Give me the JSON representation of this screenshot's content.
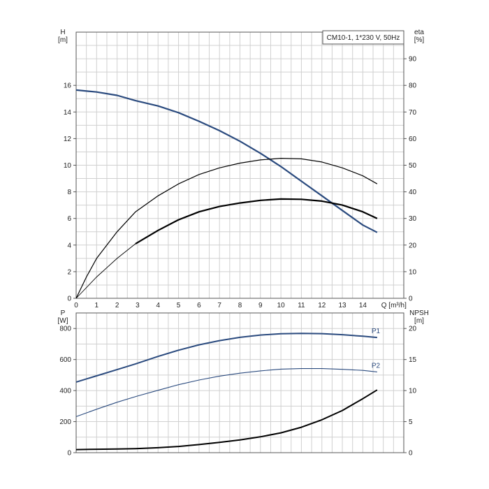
{
  "chart_data": [
    {
      "type": "line",
      "legend": "CM10-1, 1*230 V, 50Hz",
      "xlabel": "Q [m³/h]",
      "x_ticks": [
        "0",
        "1",
        "2",
        "3",
        "4",
        "5",
        "6",
        "7",
        "8",
        "9",
        "10",
        "11",
        "12",
        "13",
        "14"
      ],
      "xlim": [
        0,
        16
      ],
      "ylabel_left": [
        "H",
        "[m]"
      ],
      "ylim_left": [
        0,
        20
      ],
      "y_ticks_left": [
        "0",
        "2",
        "4",
        "6",
        "8",
        "10",
        "12",
        "14",
        "16"
      ],
      "ylabel_right": [
        "eta",
        "[%]"
      ],
      "ylim_right": [
        0,
        100
      ],
      "y_ticks_right": [
        "0",
        "10",
        "20",
        "30",
        "40",
        "50",
        "60",
        "70",
        "80",
        "90"
      ],
      "grid": true,
      "series": [
        {
          "axis": "left",
          "color": "#2a4a7e",
          "points": [
            [
              0,
              15.65
            ],
            [
              1,
              15.5
            ],
            [
              2,
              15.25
            ],
            [
              2.9,
              14.85
            ],
            [
              4,
              14.45
            ],
            [
              5,
              13.95
            ],
            [
              6,
              13.3
            ],
            [
              7,
              12.6
            ],
            [
              8,
              11.8
            ],
            [
              9,
              10.9
            ],
            [
              10,
              9.9
            ],
            [
              11,
              8.8
            ],
            [
              12,
              7.7
            ],
            [
              13,
              6.6
            ],
            [
              14,
              5.5
            ],
            [
              14.7,
              4.95
            ]
          ]
        },
        {
          "axis": "right",
          "color": "#000000",
          "points": [
            [
              0,
              0
            ],
            [
              0.5,
              8
            ],
            [
              1,
              15
            ],
            [
              2,
              25
            ],
            [
              2.9,
              32.5
            ],
            [
              4,
              38.5
            ],
            [
              5,
              43
            ],
            [
              6,
              46.5
            ],
            [
              7,
              49
            ],
            [
              8,
              50.8
            ],
            [
              9,
              52
            ],
            [
              10,
              52.6
            ],
            [
              11,
              52.4
            ],
            [
              12,
              51.2
            ],
            [
              13,
              49
            ],
            [
              14,
              46
            ],
            [
              14.7,
              43
            ]
          ]
        },
        {
          "axis": "right",
          "color": "#000000",
          "dashed_until_x": 2.9,
          "points": [
            [
              0,
              0
            ],
            [
              1,
              8
            ],
            [
              2,
              15
            ],
            [
              2.9,
              20.5
            ],
            [
              4,
              25.5
            ],
            [
              5,
              29.5
            ],
            [
              6,
              32.5
            ],
            [
              7,
              34.5
            ],
            [
              8,
              35.8
            ],
            [
              9,
              36.8
            ],
            [
              10,
              37.3
            ],
            [
              11,
              37.2
            ],
            [
              12,
              36.5
            ],
            [
              13,
              35
            ],
            [
              14,
              32.5
            ],
            [
              14.7,
              30
            ]
          ]
        }
      ]
    },
    {
      "type": "line",
      "ylabel_left": [
        "P",
        "[W]"
      ],
      "ylim_left": [
        0,
        900
      ],
      "y_ticks_left": [
        "0",
        "200",
        "400",
        "600",
        "800"
      ],
      "ylabel_right": [
        "NPSH",
        "[m]"
      ],
      "ylim_right": [
        0,
        22.5
      ],
      "y_ticks_right": [
        "0",
        "5",
        "10",
        "15",
        "20"
      ],
      "xlim": [
        0,
        16
      ],
      "grid": true,
      "series": [
        {
          "name": "P1",
          "axis": "left",
          "color": "#2a4a7e",
          "points": [
            [
              0,
              455
            ],
            [
              1,
              495
            ],
            [
              2,
              535
            ],
            [
              2.9,
              572
            ],
            [
              4,
              620
            ],
            [
              5,
              660
            ],
            [
              6,
              695
            ],
            [
              7,
              722
            ],
            [
              8,
              743
            ],
            [
              9,
              758
            ],
            [
              10,
              766
            ],
            [
              11,
              768
            ],
            [
              12,
              767
            ],
            [
              13,
              760
            ],
            [
              14,
              750
            ],
            [
              14.7,
              742
            ]
          ]
        },
        {
          "name": "P2",
          "axis": "left",
          "color": "#2a4a7e",
          "points": [
            [
              0,
              232
            ],
            [
              1,
              280
            ],
            [
              2,
              325
            ],
            [
              3,
              365
            ],
            [
              4,
              402
            ],
            [
              5,
              438
            ],
            [
              6,
              468
            ],
            [
              7,
              493
            ],
            [
              8,
              512
            ],
            [
              9,
              527
            ],
            [
              10,
              538
            ],
            [
              11,
              542
            ],
            [
              12,
              542
            ],
            [
              13,
              537
            ],
            [
              14,
              530
            ],
            [
              14.7,
              520
            ]
          ]
        },
        {
          "axis": "right",
          "color": "#000000",
          "points": [
            [
              0,
              0.5
            ],
            [
              1,
              0.55
            ],
            [
              2,
              0.6
            ],
            [
              2.9,
              0.65
            ],
            [
              4,
              0.8
            ],
            [
              5,
              1
            ],
            [
              6,
              1.3
            ],
            [
              7,
              1.65
            ],
            [
              8,
              2.05
            ],
            [
              9,
              2.55
            ],
            [
              10,
              3.2
            ],
            [
              11,
              4.1
            ],
            [
              12,
              5.3
            ],
            [
              13,
              6.8
            ],
            [
              14,
              8.7
            ],
            [
              14.7,
              10.1
            ]
          ]
        }
      ]
    }
  ]
}
